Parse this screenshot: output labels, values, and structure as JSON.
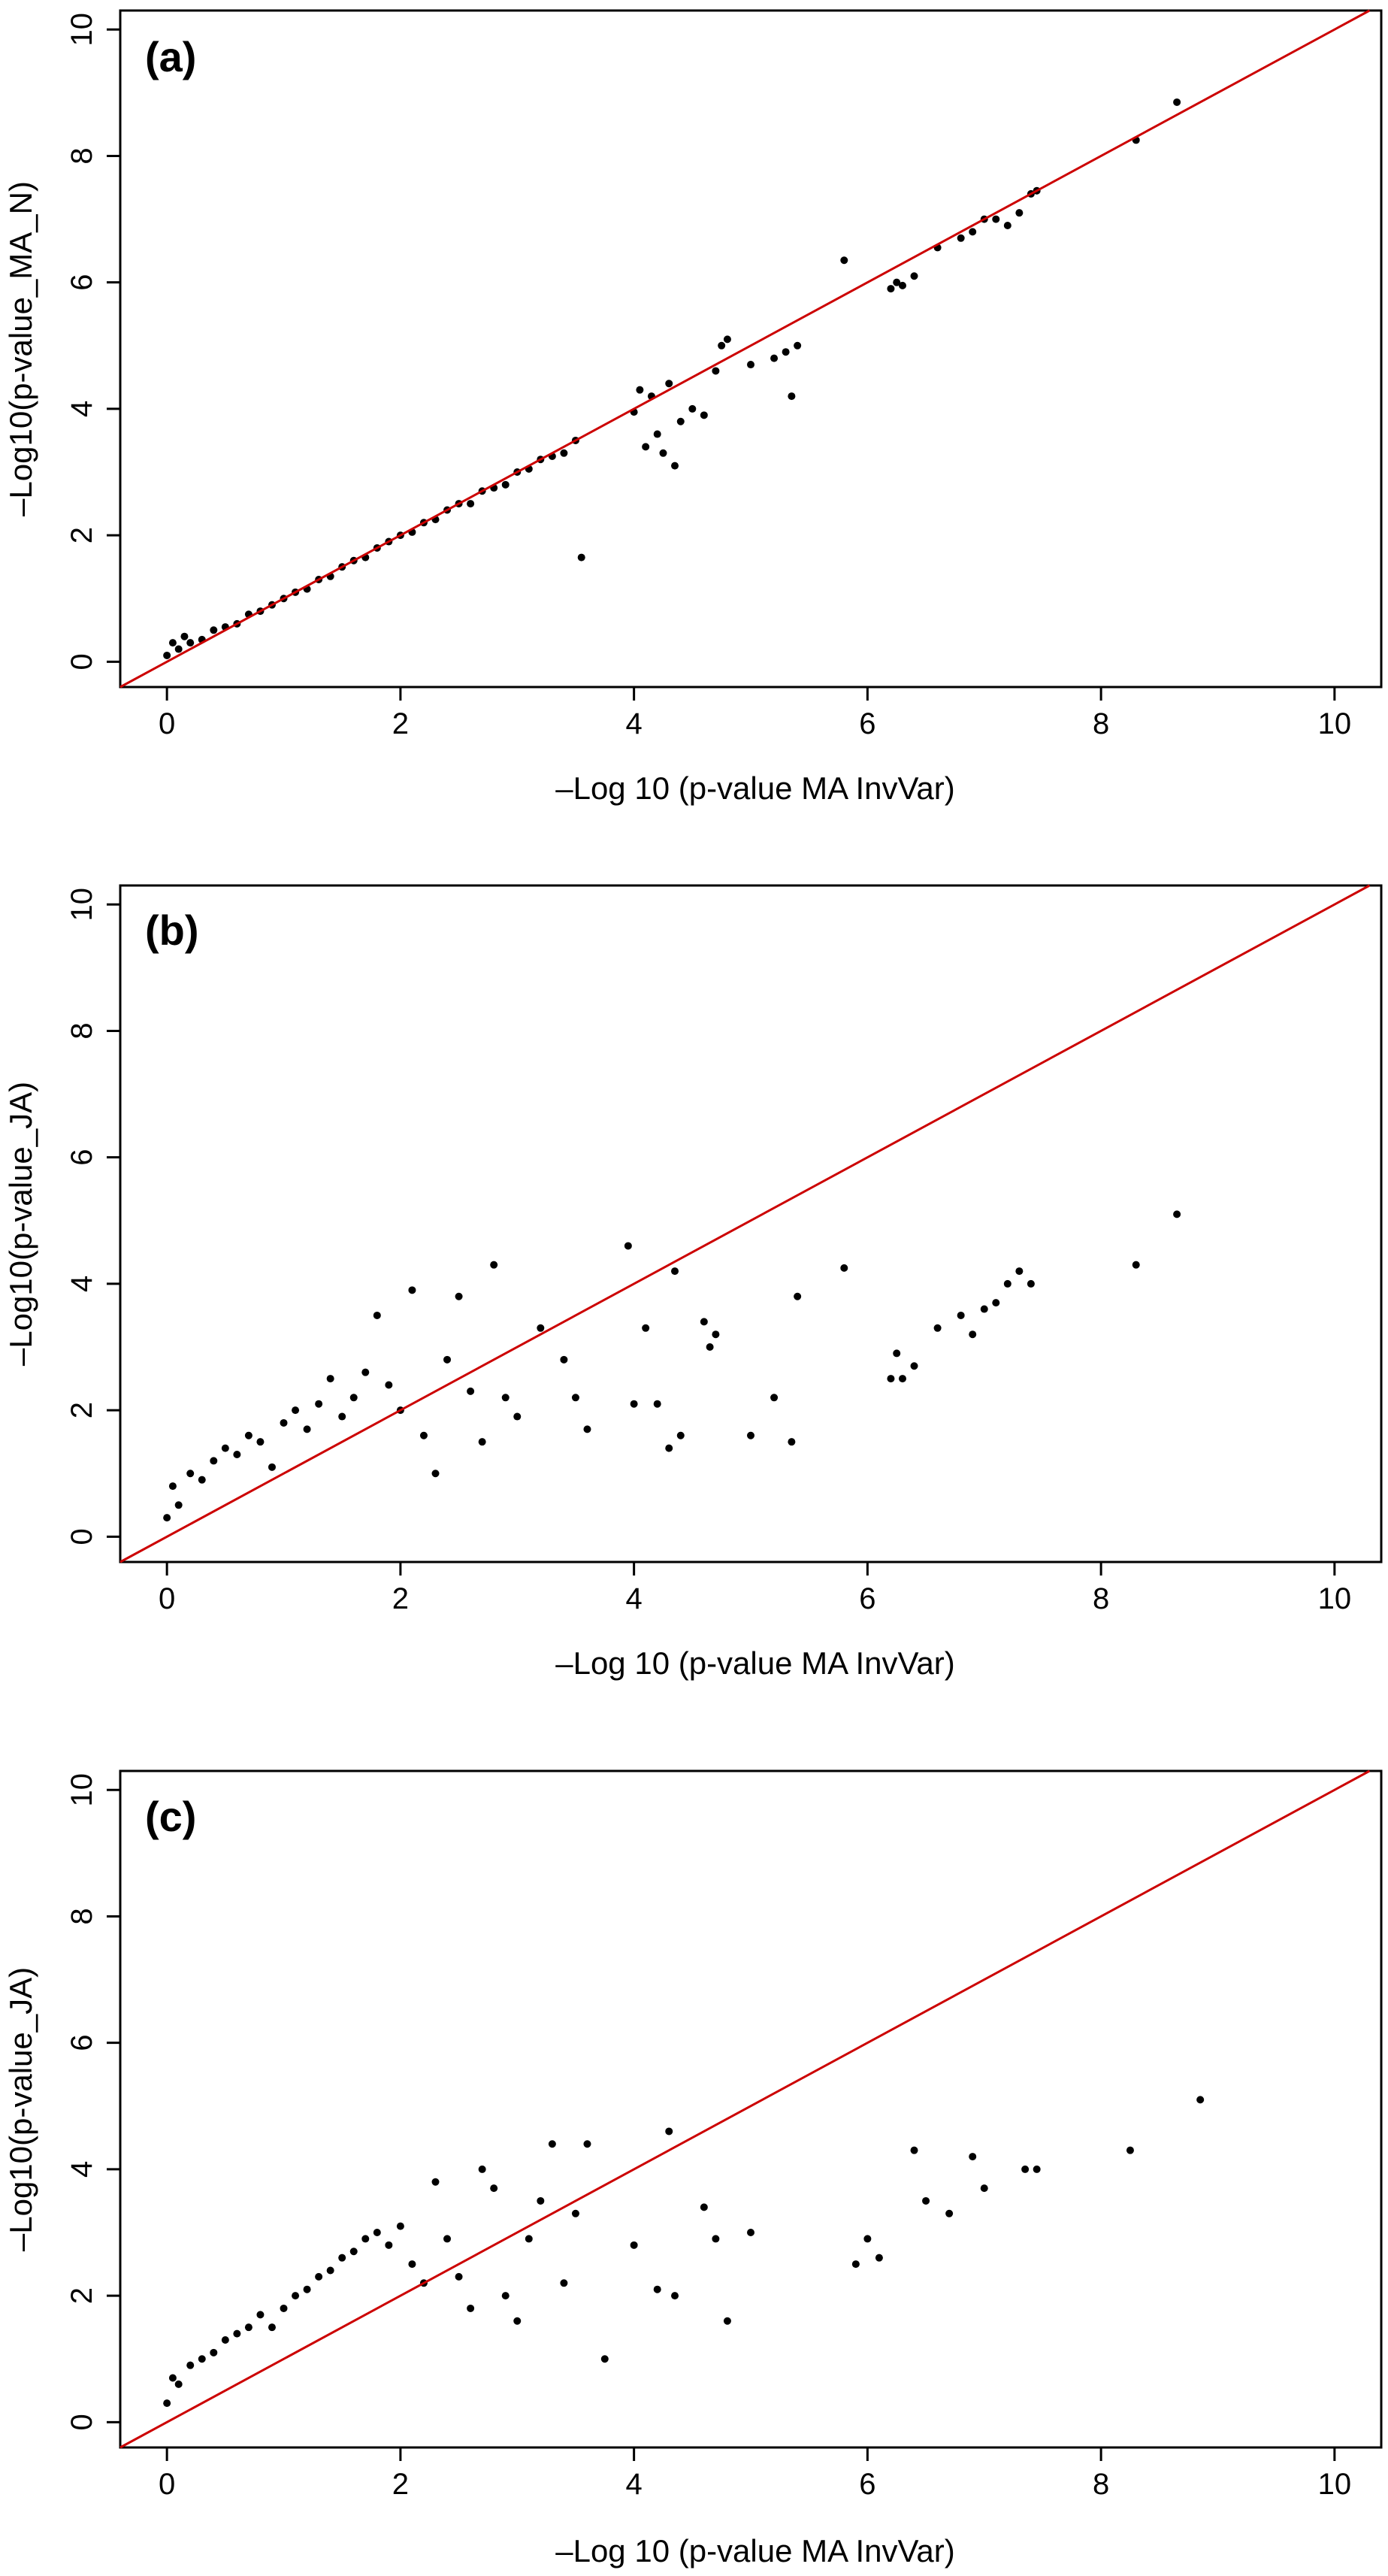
{
  "figure": {
    "panels": [
      {
        "label": "(a)",
        "xlabel": "–Log 10 (p-value MA InvVar)",
        "ylabel": "–Log10(p-value_MA_N)"
      },
      {
        "label": "(b)",
        "xlabel": "–Log 10 (p-value MA InvVar)",
        "ylabel": "–Log10(p-value_JA)"
      },
      {
        "label": "(c)",
        "xlabel": "–Log 10 (p-value MA InvVar)",
        "ylabel": "–Log10(p-value_JA)"
      }
    ]
  },
  "colors": {
    "points": "#000000",
    "reference_line": "#cc0000",
    "axes": "#000000"
  },
  "chart_data": [
    {
      "type": "scatter",
      "title": "(a)",
      "xlabel": "–Log 10 (p-value MA InvVar)",
      "ylabel": "–Log10(p-value_MA_N)",
      "xlim": [
        -0.4,
        10.4
      ],
      "ylim": [
        -0.4,
        10.3
      ],
      "xticks": [
        0,
        2,
        4,
        6,
        8,
        10
      ],
      "yticks": [
        0,
        2,
        4,
        6,
        8,
        10
      ],
      "grid": false,
      "reference_line": {
        "slope": 1,
        "intercept": 0,
        "color": "#cc0000"
      },
      "series": [
        {
          "x": [
            0.0,
            0.05,
            0.1,
            0.15,
            0.2,
            0.3,
            0.4,
            0.5,
            0.6,
            0.7,
            0.8,
            0.9,
            1.0,
            1.1,
            1.2,
            1.3,
            1.4,
            1.5,
            1.6,
            1.7,
            1.8,
            1.9,
            2.0,
            2.1,
            2.2,
            2.3,
            2.4,
            2.5,
            2.6,
            2.7,
            2.8,
            2.9,
            3.0,
            3.1,
            3.2,
            3.3,
            3.4,
            3.5,
            3.55,
            4.0,
            4.05,
            4.1,
            4.15,
            4.2,
            4.25,
            4.3,
            4.35,
            4.4,
            4.5,
            4.6,
            4.7,
            4.75,
            4.8,
            5.0,
            5.2,
            5.3,
            5.35,
            5.4,
            5.8,
            6.2,
            6.25,
            6.3,
            6.4,
            6.6,
            6.8,
            6.9,
            7.0,
            7.1,
            7.2,
            7.3,
            7.4,
            7.45,
            8.3,
            8.65
          ],
          "y": [
            0.1,
            0.3,
            0.2,
            0.4,
            0.3,
            0.35,
            0.5,
            0.55,
            0.6,
            0.75,
            0.8,
            0.9,
            1.0,
            1.1,
            1.15,
            1.3,
            1.35,
            1.5,
            1.6,
            1.65,
            1.8,
            1.9,
            2.0,
            2.05,
            2.2,
            2.25,
            2.4,
            2.5,
            2.5,
            2.7,
            2.75,
            2.8,
            3.0,
            3.05,
            3.2,
            3.25,
            3.3,
            3.5,
            1.65,
            3.95,
            4.3,
            3.4,
            4.2,
            3.6,
            3.3,
            4.4,
            3.1,
            3.8,
            4.0,
            3.9,
            4.6,
            5.0,
            5.1,
            4.7,
            4.8,
            4.9,
            4.2,
            5.0,
            6.35,
            5.9,
            6.0,
            5.95,
            6.1,
            6.55,
            6.7,
            6.8,
            7.0,
            7.0,
            6.9,
            7.1,
            7.4,
            7.45,
            8.25,
            8.85
          ]
        }
      ]
    },
    {
      "type": "scatter",
      "title": "(b)",
      "xlabel": "–Log 10 (p-value MA InvVar)",
      "ylabel": "–Log10(p-value_JA)",
      "xlim": [
        -0.4,
        10.4
      ],
      "ylim": [
        -0.4,
        10.3
      ],
      "xticks": [
        0,
        2,
        4,
        6,
        8,
        10
      ],
      "yticks": [
        0,
        2,
        4,
        6,
        8,
        10
      ],
      "grid": false,
      "reference_line": {
        "slope": 1,
        "intercept": 0,
        "color": "#cc0000"
      },
      "series": [
        {
          "x": [
            0.0,
            0.05,
            0.1,
            0.2,
            0.3,
            0.4,
            0.5,
            0.6,
            0.7,
            0.8,
            0.9,
            1.0,
            1.1,
            1.2,
            1.3,
            1.4,
            1.5,
            1.6,
            1.7,
            1.8,
            1.9,
            2.0,
            2.1,
            2.2,
            2.3,
            2.4,
            2.5,
            2.6,
            2.7,
            2.8,
            2.9,
            3.0,
            3.2,
            3.4,
            3.5,
            3.6,
            3.95,
            4.0,
            4.1,
            4.2,
            4.3,
            4.35,
            4.4,
            4.6,
            4.65,
            4.7,
            5.0,
            5.2,
            5.35,
            5.4,
            5.8,
            6.2,
            6.25,
            6.3,
            6.4,
            6.6,
            6.8,
            6.9,
            7.0,
            7.1,
            7.2,
            7.3,
            7.4,
            8.3,
            8.65
          ],
          "y": [
            0.3,
            0.8,
            0.5,
            1.0,
            0.9,
            1.2,
            1.4,
            1.3,
            1.6,
            1.5,
            1.1,
            1.8,
            2.0,
            1.7,
            2.1,
            2.5,
            1.9,
            2.2,
            2.6,
            3.5,
            2.4,
            2.0,
            3.9,
            1.6,
            1.0,
            2.8,
            3.8,
            2.3,
            1.5,
            4.3,
            2.2,
            1.9,
            3.3,
            2.8,
            2.2,
            1.7,
            4.6,
            2.1,
            3.3,
            2.1,
            1.4,
            4.2,
            1.6,
            3.4,
            3.0,
            3.2,
            1.6,
            2.2,
            1.5,
            3.8,
            4.25,
            2.5,
            2.9,
            2.5,
            2.7,
            3.3,
            3.5,
            3.2,
            3.6,
            3.7,
            4.0,
            4.2,
            4.0,
            4.3,
            5.1
          ]
        }
      ]
    },
    {
      "type": "scatter",
      "title": "(c)",
      "xlabel": "–Log 10 (p-value MA InvVar)",
      "ylabel": "–Log10(p-value_JA)",
      "xlim": [
        -0.4,
        10.4
      ],
      "ylim": [
        -0.4,
        10.3
      ],
      "xticks": [
        0,
        2,
        4,
        6,
        8,
        10
      ],
      "yticks": [
        0,
        2,
        4,
        6,
        8,
        10
      ],
      "grid": false,
      "reference_line": {
        "slope": 1,
        "intercept": 0,
        "color": "#cc0000"
      },
      "series": [
        {
          "x": [
            0.0,
            0.05,
            0.1,
            0.2,
            0.3,
            0.4,
            0.5,
            0.6,
            0.7,
            0.8,
            0.9,
            1.0,
            1.1,
            1.2,
            1.3,
            1.4,
            1.5,
            1.6,
            1.7,
            1.8,
            1.9,
            2.0,
            2.1,
            2.2,
            2.3,
            2.4,
            2.5,
            2.6,
            2.7,
            2.8,
            2.9,
            3.0,
            3.1,
            3.2,
            3.3,
            3.4,
            3.5,
            3.6,
            3.75,
            4.0,
            4.2,
            4.3,
            4.35,
            4.6,
            4.7,
            4.8,
            5.0,
            5.9,
            6.0,
            6.1,
            6.4,
            6.5,
            6.7,
            6.9,
            7.0,
            7.35,
            7.45,
            8.25,
            8.85
          ],
          "y": [
            0.3,
            0.7,
            0.6,
            0.9,
            1.0,
            1.1,
            1.3,
            1.4,
            1.5,
            1.7,
            1.5,
            1.8,
            2.0,
            2.1,
            2.3,
            2.4,
            2.6,
            2.7,
            2.9,
            3.0,
            2.8,
            3.1,
            2.5,
            2.2,
            3.8,
            2.9,
            2.3,
            1.8,
            4.0,
            3.7,
            2.0,
            1.6,
            2.9,
            3.5,
            4.4,
            2.2,
            3.3,
            4.4,
            1.0,
            2.8,
            2.1,
            4.6,
            2.0,
            3.4,
            2.9,
            1.6,
            3.0,
            2.5,
            2.9,
            2.6,
            4.3,
            3.5,
            3.3,
            4.2,
            3.7,
            4.0,
            4.0,
            4.3,
            5.1
          ]
        }
      ]
    }
  ]
}
